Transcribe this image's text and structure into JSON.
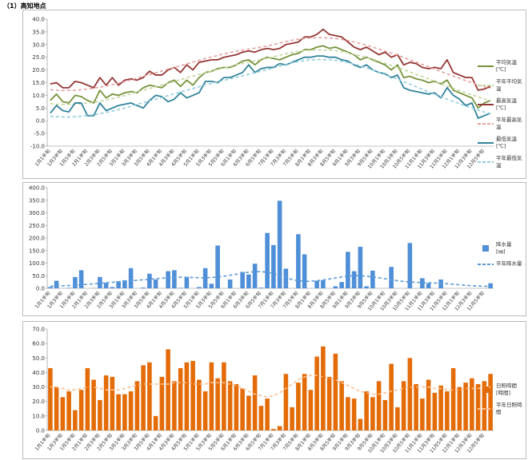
{
  "title": "（1）高知地点",
  "chart_data": [
    {
      "type": "line",
      "categories": [
        "1月1半旬",
        null,
        "1月3半旬",
        null,
        "1月5半旬",
        null,
        "2月1半旬",
        null,
        "2月3半旬",
        null,
        "2月5半旬",
        null,
        "3月1半旬",
        null,
        "3月3半旬",
        null,
        "3月5半旬",
        null,
        "4月1半旬",
        null,
        "4月3半旬",
        null,
        "4月5半旬",
        null,
        "5月1半旬",
        null,
        "5月3半旬",
        null,
        "5月5半旬",
        null,
        "6月1半旬",
        null,
        "6月3半旬",
        null,
        "6月5半旬",
        null,
        "7月1半旬",
        null,
        "7月3半旬",
        null,
        "7月5半旬",
        null,
        "8月1半旬",
        null,
        "8月3半旬",
        null,
        "8月5半旬",
        null,
        "9月1半旬",
        null,
        "9月3半旬",
        null,
        "9月5半旬",
        null,
        "10月1半旬",
        null,
        "10月3半旬",
        null,
        "10月5半旬",
        null,
        "11月1半旬",
        null,
        "11月3半旬",
        null,
        "11月5半旬",
        null,
        "12月1半旬",
        null,
        "12月3半旬",
        null,
        "12月5半旬",
        null
      ],
      "ylim": [
        -10,
        40
      ],
      "yticks": [
        {
          "value": -10,
          "label": "-10.0"
        },
        {
          "value": -5,
          "label": "-5.0"
        },
        {
          "value": 0,
          "label": "0.0"
        },
        {
          "value": 5,
          "label": "5.0"
        },
        {
          "value": 10,
          "label": "10.0"
        },
        {
          "value": 15,
          "label": "15.0"
        },
        {
          "value": 20,
          "label": "20.0"
        },
        {
          "value": 25,
          "label": "25.0"
        },
        {
          "value": 30,
          "label": "30.0"
        },
        {
          "value": 35,
          "label": "35.0"
        },
        {
          "value": 40,
          "label": "40.0"
        }
      ],
      "grid": false,
      "series": [
        {
          "name": "平均気温\n[℃]",
          "type": "line",
          "color": "#77933c",
          "dashed": false,
          "values": [
            8,
            10.5,
            7.5,
            7,
            10,
            9.5,
            8,
            7,
            12,
            9,
            10.5,
            10,
            11,
            11.5,
            11,
            13,
            14,
            13.5,
            13,
            15,
            16,
            13.5,
            16,
            14,
            17,
            19,
            19.5,
            20.5,
            21,
            21,
            22,
            23.5,
            24,
            22,
            24,
            25,
            24.5,
            24,
            25,
            26,
            26.5,
            28,
            28,
            29,
            29.5,
            28.5,
            29,
            28,
            27,
            26,
            24,
            25,
            24,
            23,
            22,
            20,
            22,
            17,
            17.5,
            16.5,
            16,
            15,
            15.5,
            14.5,
            16,
            12,
            11,
            10,
            9,
            5,
            7,
            8
          ]
        },
        {
          "name": "平年平均気温",
          "type": "line",
          "color": "#c3d69b",
          "dashed": true,
          "values": [
            6.7,
            6.5,
            6.4,
            6.4,
            6.5,
            6.7,
            7.0,
            7.3,
            7.7,
            8.2,
            8.7,
            9.3,
            9.9,
            10.6,
            11.3,
            12.0,
            12.7,
            13.4,
            14.1,
            14.8,
            15.5,
            16.2,
            16.9,
            17.6,
            18.3,
            19.0,
            19.6,
            20.2,
            20.8,
            21.4,
            22.0,
            22.6,
            23.1,
            23.6,
            24.1,
            24.6,
            25.2,
            25.8,
            26.4,
            26.9,
            27.3,
            27.6,
            27.8,
            27.9,
            27.9,
            27.8,
            27.6,
            27.2,
            26.8,
            26.2,
            25.6,
            24.9,
            24.2,
            23.4,
            22.6,
            21.8,
            21.0,
            20.1,
            19.2,
            18.3,
            17.4,
            16.5,
            15.5,
            14.6,
            13.7,
            12.8,
            11.9,
            11.0,
            10.2,
            9.4,
            8.6,
            8.0
          ]
        },
        {
          "name": "最高気温\n[℃]",
          "type": "line",
          "color": "#953735",
          "dashed": false,
          "values": [
            14.5,
            15,
            13,
            13,
            15.5,
            15,
            14,
            13,
            17,
            14,
            17,
            14,
            16,
            16.5,
            16,
            17,
            19.5,
            18,
            18,
            20,
            21,
            19,
            22,
            20,
            23,
            23.5,
            24,
            24,
            25,
            25.5,
            26,
            27,
            27.5,
            27,
            28,
            28.5,
            28,
            28.5,
            30,
            30.5,
            31,
            33,
            33,
            34,
            36,
            34,
            33.5,
            33,
            31,
            29,
            28,
            29,
            27.5,
            26,
            27,
            25,
            26,
            22,
            23,
            22.5,
            21,
            20.5,
            21,
            20.5,
            24,
            19,
            18,
            17,
            17,
            12,
            12.5,
            13.5
          ]
        },
        {
          "name": "平年最高気温",
          "type": "line",
          "color": "#e6a0a0",
          "dashed": true,
          "values": [
            12.2,
            12.0,
            11.9,
            11.9,
            12.0,
            12.2,
            12.5,
            12.8,
            13.2,
            13.7,
            14.2,
            14.8,
            15.4,
            16.1,
            16.8,
            17.5,
            18.2,
            18.9,
            19.6,
            20.3,
            21.0,
            21.7,
            22.4,
            23.1,
            23.8,
            24.5,
            25.1,
            25.7,
            26.3,
            26.9,
            27.4,
            27.8,
            28.2,
            28.6,
            29.0,
            29.4,
            30.0,
            30.6,
            31.2,
            31.7,
            32.1,
            32.4,
            32.6,
            32.7,
            32.7,
            32.6,
            32.4,
            32.0,
            31.6,
            31.0,
            30.4,
            29.7,
            29.0,
            28.2,
            27.4,
            26.6,
            25.8,
            24.9,
            24.0,
            23.1,
            22.2,
            21.3,
            20.3,
            19.4,
            18.5,
            17.6,
            16.7,
            15.8,
            15.0,
            14.2,
            13.4,
            12.8
          ]
        },
        {
          "name": "最低気温\n[℃]",
          "type": "line",
          "color": "#31849b",
          "dashed": false,
          "values": [
            3,
            6,
            4,
            3.5,
            7,
            7,
            2,
            2,
            7,
            4,
            5,
            6,
            6.5,
            7,
            6,
            5,
            8,
            10,
            9.5,
            7.5,
            8.5,
            11,
            9,
            10,
            11,
            15.5,
            15.5,
            15,
            17,
            17,
            18,
            19,
            22,
            19,
            20.5,
            21,
            21,
            22.5,
            22,
            23,
            24,
            25,
            25,
            25.5,
            25.5,
            25,
            25,
            24,
            23.5,
            22,
            21,
            22,
            20,
            19,
            18.5,
            17,
            18,
            13,
            12,
            11.5,
            11,
            10.5,
            11,
            9,
            13,
            10,
            8.5,
            6,
            7,
            1,
            2,
            3
          ]
        },
        {
          "name": "平年最低気温",
          "type": "line",
          "color": "#93cddd",
          "dashed": true,
          "values": [
            1.8,
            1.6,
            1.5,
            1.5,
            1.6,
            1.8,
            2.1,
            2.4,
            2.8,
            3.3,
            3.8,
            4.4,
            5.0,
            5.7,
            6.4,
            7.1,
            7.8,
            8.5,
            9.2,
            9.9,
            10.6,
            11.3,
            12.0,
            12.7,
            13.4,
            14.1,
            14.7,
            15.3,
            15.9,
            16.5,
            17.1,
            17.7,
            18.3,
            18.9,
            19.5,
            20.1,
            20.8,
            21.5,
            22.2,
            22.8,
            23.3,
            23.7,
            24.0,
            24.1,
            24.1,
            24.0,
            23.8,
            23.4,
            22.9,
            22.3,
            21.6,
            20.8,
            20.0,
            19.1,
            18.2,
            17.3,
            16.4,
            15.4,
            14.4,
            13.4,
            12.4,
            11.4,
            10.4,
            9.4,
            8.5,
            7.6,
            6.7,
            5.8,
            5.0,
            4.2,
            3.4,
            2.8
          ]
        }
      ]
    },
    {
      "type": "bar",
      "categories": [
        "1月1半旬",
        null,
        "1月3半旬",
        null,
        "1月5半旬",
        null,
        "2月1半旬",
        null,
        "2月3半旬",
        null,
        "2月5半旬",
        null,
        "3月1半旬",
        null,
        "3月3半旬",
        null,
        "3月5半旬",
        null,
        "4月1半旬",
        null,
        "4月3半旬",
        null,
        "4月5半旬",
        null,
        "5月1半旬",
        null,
        "5月3半旬",
        null,
        "5月5半旬",
        null,
        "6月1半旬",
        null,
        "6月3半旬",
        null,
        "6月5半旬",
        null,
        "7月1半旬",
        null,
        "7月3半旬",
        null,
        "7月5半旬",
        null,
        "8月1半旬",
        null,
        "8月3半旬",
        null,
        "8月5半旬",
        null,
        "9月1半旬",
        null,
        "9月3半旬",
        null,
        "9月5半旬",
        null,
        "10月1半旬",
        null,
        "10月3半旬",
        null,
        "10月5半旬",
        null,
        "11月1半旬",
        null,
        "11月3半旬",
        null,
        "11月5半旬",
        null,
        "12月1半旬",
        null,
        "12月3半旬",
        null,
        "12月5半旬",
        null
      ],
      "ylim": [
        0,
        400
      ],
      "yticks": [
        {
          "value": 0,
          "label": "0.0"
        },
        {
          "value": 50,
          "label": "50.0"
        },
        {
          "value": 100,
          "label": "100.0"
        },
        {
          "value": 150,
          "label": "150.0"
        },
        {
          "value": 200,
          "label": "200.0"
        },
        {
          "value": 250,
          "label": "250.0"
        },
        {
          "value": 300,
          "label": "300.0"
        },
        {
          "value": 350,
          "label": "350.0"
        },
        {
          "value": 400,
          "label": "400.0"
        }
      ],
      "grid": false,
      "series": [
        {
          "name": "降水量\n[㎜]",
          "type": "bar",
          "color": "#4f8fd8",
          "values": [
            5,
            30,
            0,
            2,
            45,
            72,
            0,
            1,
            45,
            22,
            5,
            28,
            32,
            80,
            0,
            3,
            58,
            35,
            0,
            68,
            72,
            2,
            45,
            0,
            5,
            80,
            18,
            170,
            0,
            35,
            0,
            65,
            55,
            98,
            3,
            220,
            172,
            348,
            78,
            0,
            215,
            135,
            0,
            30,
            32,
            0,
            8,
            25,
            145,
            68,
            165,
            8,
            70,
            0,
            0,
            85,
            0,
            0,
            180,
            0,
            40,
            20,
            0,
            35,
            0,
            0,
            0,
            0,
            0,
            0,
            0,
            20
          ]
        },
        {
          "name": "平年降水量",
          "type": "line",
          "color": "#5b9bd5",
          "dashed": true,
          "values": [
            8,
            9,
            10,
            11,
            12,
            14,
            16,
            18,
            20,
            22,
            24,
            26,
            28,
            30,
            32,
            34,
            36,
            38,
            40,
            42,
            43,
            44,
            44,
            43,
            42,
            42,
            43,
            45,
            48,
            52,
            56,
            60,
            64,
            66,
            66,
            64,
            58,
            50,
            42,
            35,
            30,
            28,
            28,
            30,
            33,
            37,
            41,
            45,
            48,
            50,
            50,
            48,
            45,
            42,
            38,
            34,
            30,
            27,
            25,
            24,
            23,
            22,
            21,
            20,
            18,
            16,
            14,
            12,
            10,
            9,
            8,
            8
          ]
        }
      ]
    },
    {
      "type": "bar",
      "categories": [
        "1月1半旬",
        null,
        "1月3半旬",
        null,
        "1月5半旬",
        null,
        "2月1半旬",
        null,
        "2月3半旬",
        null,
        "2月5半旬",
        null,
        "3月1半旬",
        null,
        "3月3半旬",
        null,
        "3月5半旬",
        null,
        "4月1半旬",
        null,
        "4月3半旬",
        null,
        "4月5半旬",
        null,
        "5月1半旬",
        null,
        "5月3半旬",
        null,
        "5月5半旬",
        null,
        "6月1半旬",
        null,
        "6月3半旬",
        null,
        "6月5半旬",
        null,
        "7月1半旬",
        null,
        "7月3半旬",
        null,
        "7月5半旬",
        null,
        "8月1半旬",
        null,
        "8月3半旬",
        null,
        "8月5半旬",
        null,
        "9月1半旬",
        null,
        "9月3半旬",
        null,
        "9月5半旬",
        null,
        "10月1半旬",
        null,
        "10月3半旬",
        null,
        "10月5半旬",
        null,
        "11月1半旬",
        null,
        "11月3半旬",
        null,
        "11月5半旬",
        null,
        "12月1半旬",
        null,
        "12月3半旬",
        null,
        "12月5半旬",
        null
      ],
      "ylim": [
        0,
        70
      ],
      "yticks": [
        {
          "value": 0,
          "label": "0.0"
        },
        {
          "value": 10,
          "label": "10.0"
        },
        {
          "value": 20,
          "label": "20.0"
        },
        {
          "value": 30,
          "label": "30.0"
        },
        {
          "value": 40,
          "label": "40.0"
        },
        {
          "value": 50,
          "label": "50.0"
        },
        {
          "value": 60,
          "label": "60.0"
        },
        {
          "value": 70,
          "label": "70.0"
        }
      ],
      "grid": false,
      "series": [
        {
          "name": "日照時間\n[時間]",
          "type": "bar",
          "color": "#e36c09",
          "values": [
            43,
            30,
            23,
            27,
            14,
            28,
            43,
            35,
            21,
            38,
            37,
            25,
            25,
            27,
            34,
            45,
            47,
            10,
            37,
            56,
            34,
            43,
            47,
            48,
            35,
            27,
            47,
            36,
            47,
            34,
            32,
            29,
            24,
            38,
            17,
            22,
            1,
            3,
            39,
            16,
            33,
            39,
            28,
            51,
            58,
            37,
            53,
            34,
            23,
            22,
            8,
            27,
            23,
            34,
            21,
            46,
            16,
            34,
            50,
            32,
            22,
            35,
            26,
            31,
            27,
            43,
            30,
            33,
            36,
            32,
            34,
            39
          ]
        },
        {
          "name": "平年日照時間",
          "type": "line",
          "color": "#fac090",
          "dashed": true,
          "values": [
            30,
            30,
            29,
            28,
            28,
            29,
            30,
            30,
            29,
            28,
            28,
            28,
            29,
            30,
            31,
            32,
            32,
            32,
            32,
            32,
            33,
            33,
            33,
            32,
            32,
            32,
            33,
            33,
            33,
            32,
            31,
            29,
            27,
            25,
            24,
            23,
            24,
            26,
            29,
            32,
            35,
            37,
            38,
            38,
            37,
            36,
            35,
            33,
            31,
            29,
            27,
            26,
            25,
            25,
            26,
            27,
            28,
            29,
            30,
            30,
            30,
            30,
            29,
            29,
            28,
            28,
            28,
            29,
            29,
            29,
            30,
            30
          ]
        }
      ]
    }
  ]
}
